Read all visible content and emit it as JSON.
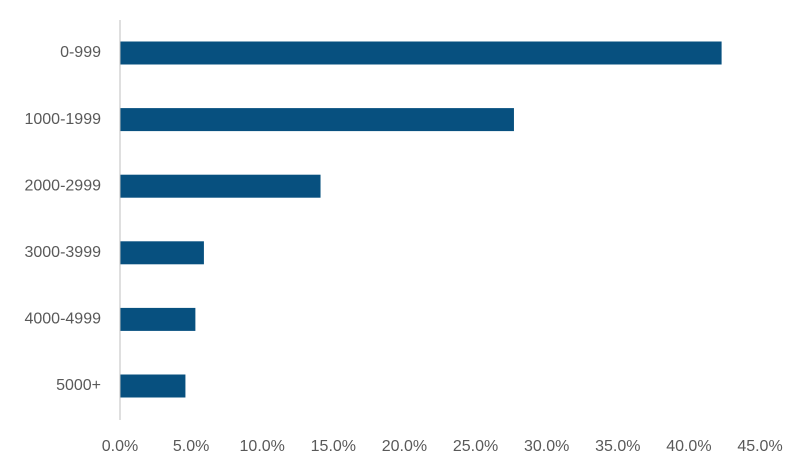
{
  "chart_data": {
    "type": "bar",
    "orientation": "horizontal",
    "categories": [
      "0-999",
      "1000-1999",
      "2000-2999",
      "3000-3999",
      "4000-4999",
      "5000+"
    ],
    "values": [
      42.3,
      27.7,
      14.1,
      5.9,
      5.3,
      4.6
    ],
    "value_unit": "%",
    "x_ticks": [
      "0.0%",
      "5.0%",
      "10.0%",
      "15.0%",
      "20.0%",
      "25.0%",
      "30.0%",
      "35.0%",
      "40.0%",
      "45.0%"
    ],
    "xlim": [
      0,
      45
    ],
    "title": "",
    "xlabel": "",
    "ylabel": "",
    "grid": false,
    "legend": "none",
    "bar_color": "#07507f",
    "axis_color": "#bfbfbf",
    "text_color": "#595959"
  }
}
